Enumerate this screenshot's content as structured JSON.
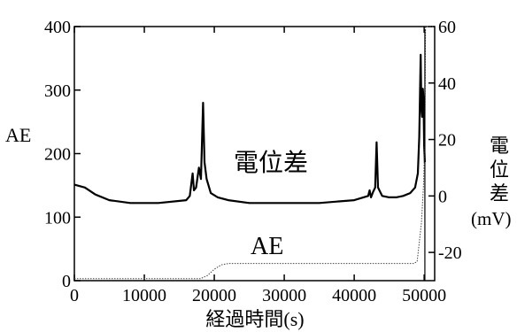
{
  "chart_data": {
    "type": "line",
    "title": "",
    "xlabel": "経過時間(s)",
    "ylabel_left": "AE",
    "ylabel_right": [
      "電",
      "位",
      "差",
      "(mV)"
    ],
    "xlim": [
      0,
      51500
    ],
    "ylim_left": [
      0,
      400
    ],
    "ylim_right": [
      -30,
      60
    ],
    "x_ticks": [
      0,
      10000,
      20000,
      30000,
      40000,
      50000
    ],
    "y_left_ticks": [
      0,
      100,
      200,
      300,
      400
    ],
    "y_right_ticks": [
      -20,
      0,
      20,
      40,
      60
    ],
    "grid": false,
    "annotations": [
      {
        "text": "電位差",
        "series": "potential"
      },
      {
        "text": "AE",
        "series": "ae"
      }
    ],
    "series": [
      {
        "id": "potential",
        "axis": "right",
        "line_style": "solid-thick",
        "x": [
          0,
          1500,
          3000,
          5000,
          8000,
          12000,
          16000,
          16500,
          16900,
          17100,
          17400,
          17800,
          18100,
          18400,
          18600,
          18900,
          19500,
          20500,
          22000,
          25000,
          30000,
          35000,
          40000,
          42000,
          42200,
          42400,
          42700,
          43000,
          43200,
          43400,
          43600,
          44000,
          45000,
          46000,
          47000,
          48000,
          48700,
          49100,
          49300,
          49500,
          49600,
          49700,
          49800,
          49900,
          50000,
          50100
        ],
        "y": [
          4,
          3,
          0.5,
          -1.5,
          -2.5,
          -2.5,
          -1.5,
          0,
          8,
          2,
          3,
          10,
          6,
          33,
          12,
          6,
          1,
          -0.5,
          -1.5,
          -2.5,
          -2.5,
          -2.5,
          -1.5,
          0,
          2,
          -0.5,
          1.5,
          3,
          19,
          3,
          2,
          0,
          -0.5,
          -0.5,
          0,
          1,
          3,
          8,
          21,
          50,
          31,
          28,
          38,
          35,
          18,
          12
        ]
      },
      {
        "id": "ae",
        "axis": "left",
        "line_style": "dotted",
        "x": [
          0,
          18000,
          19000,
          20000,
          21000,
          22000,
          30000,
          40000,
          48500,
          49000,
          49300,
          49600,
          49900,
          50100,
          50200,
          51500
        ],
        "y": [
          3,
          3,
          8,
          18,
          25,
          27,
          27,
          27,
          27,
          30,
          60,
          90,
          150,
          230,
          400,
          400
        ]
      }
    ],
    "vertical_lines": [
      50100
    ]
  }
}
